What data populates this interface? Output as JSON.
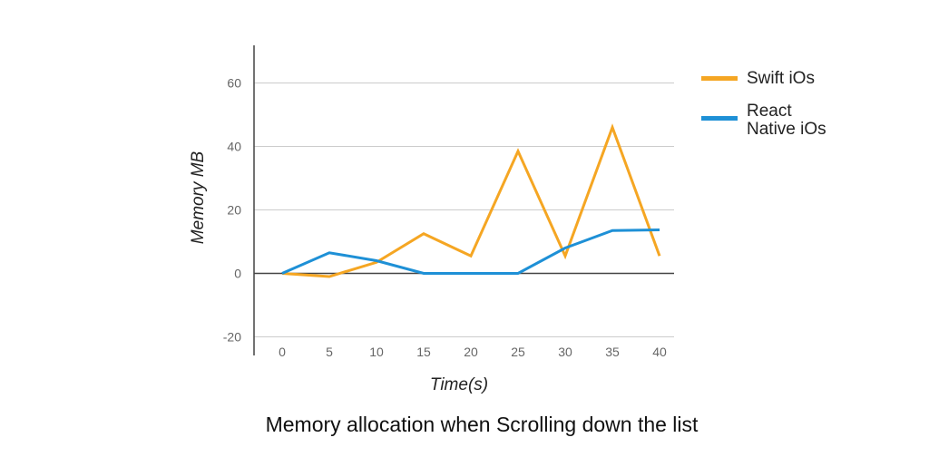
{
  "chart_data": {
    "type": "line",
    "title": "Memory allocation when Scrolling down the list",
    "xlabel": "Time(s)",
    "ylabel": "Memory MB",
    "x": [
      0,
      5,
      10,
      15,
      20,
      25,
      30,
      35,
      40
    ],
    "xticks": [
      "0",
      "5",
      "10",
      "15",
      "20",
      "25",
      "30",
      "35",
      "40"
    ],
    "yticks": [
      -20,
      0,
      20,
      40,
      60
    ],
    "ylim": [
      -25,
      72
    ],
    "grid": true,
    "legend_position": "right",
    "series": [
      {
        "name": "Swift iOs",
        "color": "#F5A623",
        "values": [
          0,
          -1,
          3.5,
          12.5,
          5.5,
          38.5,
          5.5,
          46,
          5.5
        ]
      },
      {
        "name": "React Native iOs",
        "name_lines": [
          "React",
          "Native iOs"
        ],
        "color": "#1E90D6",
        "values": [
          0,
          6.5,
          4,
          0,
          0,
          0,
          8,
          13.5,
          13.7
        ]
      }
    ]
  }
}
